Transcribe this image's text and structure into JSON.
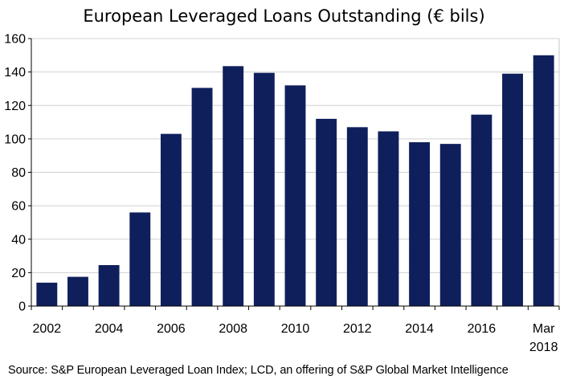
{
  "chart_data": {
    "type": "bar",
    "title": "European Leveraged Loans Outstanding  (€ bils)",
    "xlabel": "",
    "ylabel": "",
    "ylim": [
      0,
      160
    ],
    "yticks": [
      0,
      20,
      40,
      60,
      80,
      100,
      120,
      140,
      160
    ],
    "categories": [
      "2002",
      "2003",
      "2004",
      "2005",
      "2006",
      "2007",
      "2008",
      "2009",
      "2010",
      "2011",
      "2012",
      "2013",
      "2014",
      "2015",
      "2016",
      "2017",
      "Mar 2018"
    ],
    "tick_labels": [
      {
        "index": 0,
        "lines": [
          "2002"
        ]
      },
      {
        "index": 2,
        "lines": [
          "2004"
        ]
      },
      {
        "index": 4,
        "lines": [
          "2006"
        ]
      },
      {
        "index": 6,
        "lines": [
          "2008"
        ]
      },
      {
        "index": 8,
        "lines": [
          "2010"
        ]
      },
      {
        "index": 10,
        "lines": [
          "2012"
        ]
      },
      {
        "index": 12,
        "lines": [
          "2014"
        ]
      },
      {
        "index": 14,
        "lines": [
          "2016"
        ]
      },
      {
        "index": 16,
        "lines": [
          "Mar",
          "2018"
        ]
      }
    ],
    "values": [
      14,
      17.5,
      24.5,
      56,
      103,
      130.5,
      143.5,
      139.5,
      132,
      112,
      107,
      104.5,
      98,
      97,
      114.5,
      139,
      150
    ],
    "grid": true,
    "legend": "none",
    "bar_color": "#0f1f5c"
  },
  "source": "Source: S&P European Leveraged Loan Index; LCD, an offering of S&P Global Market Intelligence"
}
